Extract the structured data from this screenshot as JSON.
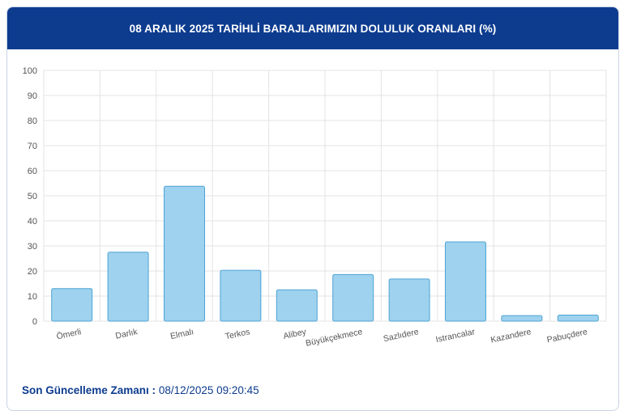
{
  "header": {
    "title": "08 ARALIK 2025 TARİHLİ BARAJLARIMIZIN DOLULUK ORANLARI (%)"
  },
  "footer": {
    "label": "Son Güncelleme Zamanı :",
    "value": "08/12/2025 09:20:45"
  },
  "colors": {
    "header_bg": "#0d3c8f",
    "bar_fill": "#9ed2ee",
    "bar_stroke": "#4ea3d4",
    "grid": "#e3e3e3"
  },
  "chart_data": {
    "type": "bar",
    "title": "08 ARALIK 2025 TARİHLİ BARAJLARIMIZIN DOLULUK ORANLARI (%)",
    "categories": [
      "Ömerli",
      "Darlık",
      "Elmalı",
      "Terkos",
      "Alibey",
      "Büyükçekmece",
      "Sazlıdere",
      "Istrancalar",
      "Kazandere",
      "Pabuçdere"
    ],
    "values": [
      13,
      27.5,
      53.8,
      20.3,
      12.5,
      18.6,
      16.8,
      31.6,
      2.2,
      2.4
    ],
    "yticks": [
      0,
      10,
      20,
      30,
      40,
      50,
      60,
      70,
      80,
      90,
      100
    ],
    "ylim": [
      0,
      100
    ],
    "xlabel": "",
    "ylabel": "",
    "grid": true
  }
}
